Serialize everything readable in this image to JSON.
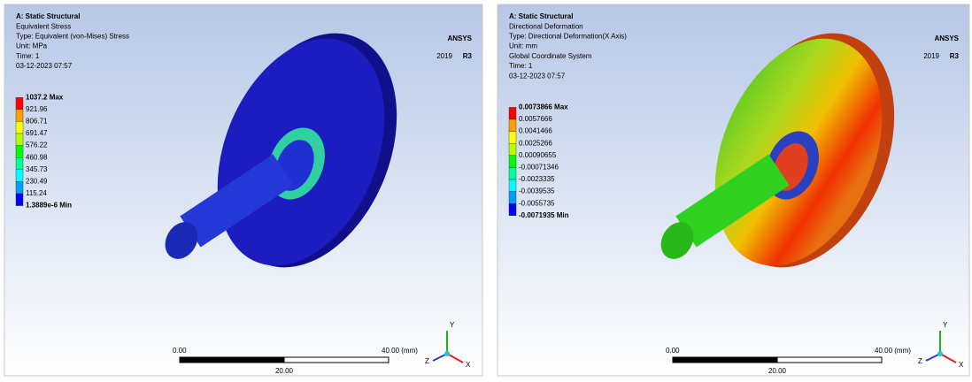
{
  "panels": [
    {
      "header": [
        "A: Static Structural",
        "Equivalent Stress",
        "Type: Equivalent (von-Mises) Stress",
        "Unit: MPa",
        "Time: 1",
        "03-12-2023 07:57"
      ],
      "legend": [
        "1037.2 Max",
        "921.96",
        "806.71",
        "691.47",
        "576.22",
        "460.98",
        "345.73",
        "230.49",
        "115.24",
        "1.3889e-6 Min"
      ],
      "logo": {
        "brand": "ANSYS",
        "version": "2019",
        "release": "R3"
      },
      "scale": {
        "start": "0.00",
        "end": "40.00 (mm)",
        "mid": "20.00"
      },
      "triad": {
        "x": "X",
        "y": "Y",
        "z": "Z"
      }
    },
    {
      "header": [
        "A: Static Structural",
        "Directional Deformation",
        "Type: Directional Deformation(X Axis)",
        "Unit: mm",
        "Global Coordinate System",
        "Time: 1",
        "03-12-2023 07:57"
      ],
      "legend": [
        "0.0073866 Max",
        "0.0057666",
        "0.0041466",
        "0.0025266",
        "0.00090655",
        "-0.00071346",
        "-0.0023335",
        "-0.0039535",
        "-0.0055735",
        "-0.0071935 Min"
      ],
      "logo": {
        "brand": "ANSYS",
        "version": "2019",
        "release": "R3"
      },
      "scale": {
        "start": "0.00",
        "end": "40.00 (mm)",
        "mid": "20.00"
      },
      "triad": {
        "x": "X",
        "y": "Y",
        "z": "Z"
      }
    }
  ]
}
